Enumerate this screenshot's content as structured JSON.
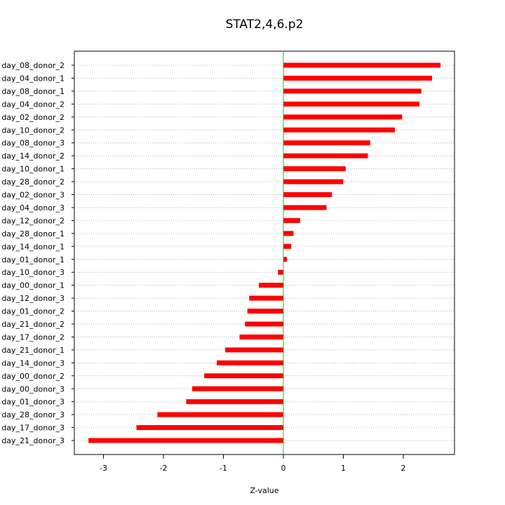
{
  "chart_data": {
    "type": "bar",
    "orientation": "horizontal",
    "title": "STAT2,4,6.p2",
    "xlabel": "Z-value",
    "ylabel": "",
    "xlim": [
      -3.5,
      2.85
    ],
    "xticks": [
      -3,
      -2,
      -1,
      0,
      1,
      2
    ],
    "bar_color": "#ff0000",
    "zero_line_color": "#00cc00",
    "grid": "horizontal dotted",
    "categories": [
      "day_08_donor_2",
      "day_04_donor_1",
      "day_08_donor_1",
      "day_04_donor_2",
      "day_02_donor_2",
      "day_10_donor_2",
      "day_08_donor_3",
      "day_14_donor_2",
      "day_10_donor_1",
      "day_28_donor_2",
      "day_02_donor_3",
      "day_04_donor_3",
      "day_12_donor_2",
      "day_28_donor_1",
      "day_14_donor_1",
      "day_01_donor_1",
      "day_10_donor_3",
      "day_00_donor_1",
      "day_12_donor_3",
      "day_01_donor_2",
      "day_21_donor_2",
      "day_17_donor_2",
      "day_21_donor_1",
      "day_14_donor_3",
      "day_00_donor_2",
      "day_00_donor_3",
      "day_01_donor_3",
      "day_28_donor_3",
      "day_17_donor_3",
      "day_21_donor_3"
    ],
    "values": [
      2.62,
      2.48,
      2.3,
      2.27,
      1.98,
      1.86,
      1.45,
      1.41,
      1.04,
      1.0,
      0.81,
      0.72,
      0.28,
      0.17,
      0.13,
      0.06,
      -0.09,
      -0.41,
      -0.57,
      -0.6,
      -0.64,
      -0.73,
      -0.97,
      -1.11,
      -1.32,
      -1.52,
      -1.62,
      -2.1,
      -2.45,
      -3.25
    ]
  }
}
